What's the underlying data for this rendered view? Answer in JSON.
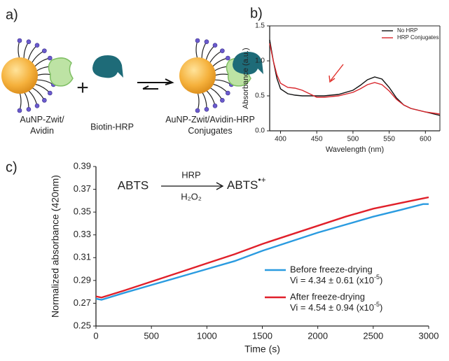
{
  "panel_labels": [
    "a)",
    "b)",
    "c)"
  ],
  "diagram": {
    "plus": "+",
    "nodes": [
      {
        "label": [
          "AuNP-Zwit/",
          "Avidin"
        ]
      },
      {
        "label": [
          "Biotin-HRP"
        ]
      },
      {
        "label": [
          "AuNP-Zwit/Avidin-HRP",
          "Conjugates"
        ]
      }
    ]
  },
  "chart_data": [
    {
      "type": "line",
      "xlabel": "Wavelength (nm)",
      "ylabel": "Absorbance (a.u.)",
      "x": [
        385,
        390,
        395,
        400,
        410,
        420,
        430,
        440,
        450,
        460,
        480,
        500,
        510,
        520,
        530,
        540,
        550,
        560,
        570,
        580,
        600,
        620
      ],
      "xlim": [
        385,
        620
      ],
      "xticks": [
        400,
        450,
        500,
        550,
        600
      ],
      "ylim": [
        0,
        1.5
      ],
      "yticks": [
        {
          "value": 0,
          "label": "0.0"
        },
        0.5,
        {
          "value": 1,
          "label": "1.0"
        },
        1.5
      ],
      "legend": "upper right",
      "series": [
        {
          "name": "No HRP",
          "color": "#111111",
          "values": [
            1.3,
            1.0,
            0.75,
            0.6,
            0.53,
            0.51,
            0.5,
            0.5,
            0.5,
            0.5,
            0.52,
            0.58,
            0.65,
            0.73,
            0.77,
            0.74,
            0.62,
            0.47,
            0.37,
            0.32,
            0.27,
            0.22
          ]
        },
        {
          "name": "HRP Conjugates",
          "color": "#d8262c",
          "values": [
            1.25,
            1.0,
            0.8,
            0.68,
            0.62,
            0.61,
            0.58,
            0.53,
            0.48,
            0.48,
            0.5,
            0.55,
            0.6,
            0.66,
            0.69,
            0.66,
            0.57,
            0.45,
            0.37,
            0.32,
            0.27,
            0.24
          ]
        }
      ]
    },
    {
      "type": "line",
      "xlabel": "Time (s)",
      "ylabel": "Normalized absorbance (420nm)",
      "x": [
        0,
        50,
        250,
        500,
        750,
        1000,
        1250,
        1500,
        1750,
        2000,
        2250,
        2500,
        2750,
        2950,
        3000
      ],
      "xlim": [
        0,
        3000
      ],
      "xticks": [
        0,
        500,
        1000,
        1500,
        2000,
        2500,
        3000
      ],
      "ylim": [
        0.25,
        0.39
      ],
      "yticks": [
        0.25,
        0.27,
        0.29,
        0.31,
        0.33,
        0.35,
        0.37,
        0.39
      ],
      "legend": "lower right",
      "reaction": {
        "reactant": "ABTS",
        "catalyst": "HRP",
        "oxidant": "H₂O₂",
        "product": "ABTS",
        "product_charge": "•+"
      },
      "series": [
        {
          "name": "Before freeze-drying",
          "color": "#2a9be0",
          "note": {
            "text": "Vi = 4.34 ± 0.61 (x10",
            "sup": "-5",
            "tail": ")"
          },
          "values": [
            0.274,
            0.273,
            0.279,
            0.286,
            0.293,
            0.3,
            0.307,
            0.316,
            0.324,
            0.332,
            0.339,
            0.346,
            0.352,
            0.357,
            0.357
          ]
        },
        {
          "name": "After freeze-drying",
          "color": "#e0202a",
          "note": {
            "text": "Vi = 4.54 ± 0.94 (x10",
            "sup": "-5",
            "tail": ")"
          },
          "values": [
            0.276,
            0.275,
            0.281,
            0.289,
            0.297,
            0.305,
            0.313,
            0.322,
            0.33,
            0.338,
            0.346,
            0.353,
            0.358,
            0.362,
            0.363
          ]
        }
      ]
    }
  ]
}
